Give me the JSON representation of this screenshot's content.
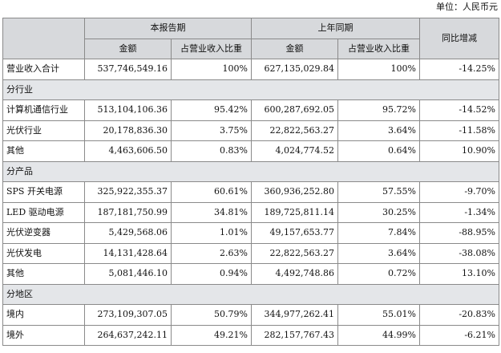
{
  "unit_label": "单位：人民币元",
  "header": {
    "current_period": "本报告期",
    "prior_period": "上年同期",
    "yoy": "同比增减",
    "amount": "金额",
    "share": "占营业收入比重"
  },
  "total": {
    "label": "营业收入合计",
    "cur_amt": "537,746,549.16",
    "cur_pct": "100%",
    "pri_amt": "627,135,029.84",
    "pri_pct": "100%",
    "yoy": "-14.25%"
  },
  "sections": [
    {
      "title": "分行业",
      "rows": [
        {
          "label": "计算机通信行业",
          "cur_amt": "513,104,106.36",
          "cur_pct": "95.42%",
          "pri_amt": "600,287,692.05",
          "pri_pct": "95.72%",
          "yoy": "-14.52%"
        },
        {
          "label": "光伏行业",
          "cur_amt": "20,178,836.30",
          "cur_pct": "3.75%",
          "pri_amt": "22,822,563.27",
          "pri_pct": "3.64%",
          "yoy": "-11.58%"
        },
        {
          "label": "其他",
          "cur_amt": "4,463,606.50",
          "cur_pct": "0.83%",
          "pri_amt": "4,024,774.52",
          "pri_pct": "0.64%",
          "yoy": "10.90%"
        }
      ]
    },
    {
      "title": "分产品",
      "rows": [
        {
          "label": "SPS 开关电源",
          "cur_amt": "325,922,355.37",
          "cur_pct": "60.61%",
          "pri_amt": "360,936,252.80",
          "pri_pct": "57.55%",
          "yoy": "-9.70%"
        },
        {
          "label": "LED 驱动电源",
          "cur_amt": "187,181,750.99",
          "cur_pct": "34.81%",
          "pri_amt": "189,725,811.14",
          "pri_pct": "30.25%",
          "yoy": "-1.34%"
        },
        {
          "label": "光伏逆变器",
          "cur_amt": "5,429,568.06",
          "cur_pct": "1.01%",
          "pri_amt": "49,157,653.77",
          "pri_pct": "7.84%",
          "yoy": "-88.95%"
        },
        {
          "label": "光伏发电",
          "cur_amt": "14,131,428.64",
          "cur_pct": "2.63%",
          "pri_amt": "22,822,563.27",
          "pri_pct": "3.64%",
          "yoy": "-38.08%"
        },
        {
          "label": "其他",
          "cur_amt": "5,081,446.10",
          "cur_pct": "0.94%",
          "pri_amt": "4,492,748.86",
          "pri_pct": "0.72%",
          "yoy": "13.10%"
        }
      ]
    },
    {
      "title": "分地区",
      "rows": [
        {
          "label": "境内",
          "cur_amt": "273,109,307.05",
          "cur_pct": "50.79%",
          "pri_amt": "344,977,262.41",
          "pri_pct": "55.01%",
          "yoy": "-20.83%"
        },
        {
          "label": "境外",
          "cur_amt": "264,637,242.11",
          "cur_pct": "49.21%",
          "pri_amt": "282,157,767.43",
          "pri_pct": "44.99%",
          "yoy": "-6.21%"
        }
      ]
    }
  ]
}
